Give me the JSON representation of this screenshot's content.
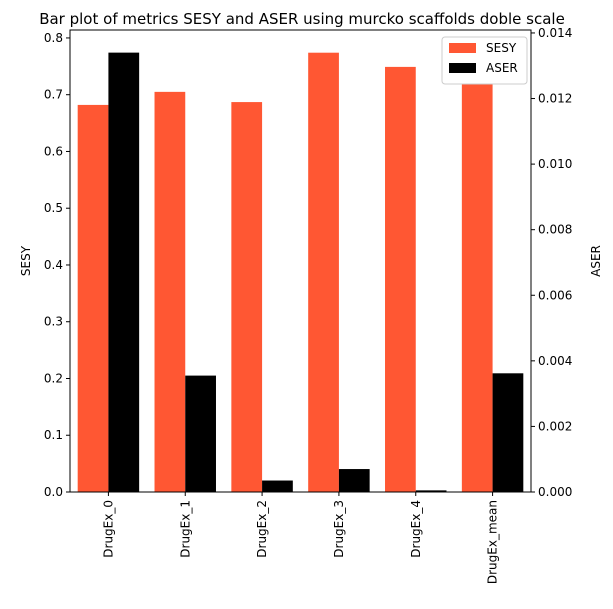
{
  "chart_data": {
    "type": "bar",
    "title": "Bar plot of metrics SESY and ASER using murcko scaffolds doble scale",
    "categories": [
      "DrugEx_0",
      "DrugEx_1",
      "DrugEx_2",
      "DrugEx_3",
      "DrugEx_4",
      "DrugEx_mean"
    ],
    "series": [
      {
        "name": "SESY",
        "axis": "left",
        "color": "#ff5733",
        "values": [
          0.682,
          0.705,
          0.687,
          0.774,
          0.749,
          0.719
        ]
      },
      {
        "name": "ASER",
        "axis": "right",
        "color": "#000000",
        "values": [
          0.0134,
          0.00355,
          0.00035,
          0.0007,
          5e-05,
          0.00362
        ]
      }
    ],
    "ylabel_left": "SESY",
    "ylabel_right": "ASER",
    "ylim_left": [
      0,
      0.814
    ],
    "ylim_right": [
      0,
      0.01409
    ],
    "yticks_left": [
      "0.0",
      "0.1",
      "0.2",
      "0.3",
      "0.4",
      "0.5",
      "0.6",
      "0.7",
      "0.8"
    ],
    "yticks_left_values": [
      0,
      0.1,
      0.2,
      0.3,
      0.4,
      0.5,
      0.6,
      0.7,
      0.8
    ],
    "yticks_right": [
      "0.000",
      "0.002",
      "0.004",
      "0.006",
      "0.008",
      "0.010",
      "0.012",
      "0.014"
    ],
    "yticks_right_values": [
      0,
      0.002,
      0.004,
      0.006,
      0.008,
      0.01,
      0.012,
      0.014
    ],
    "legend_position": "top-right",
    "grid": false
  }
}
